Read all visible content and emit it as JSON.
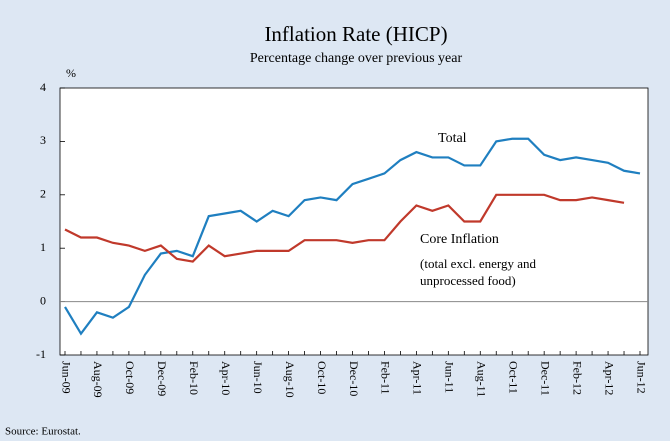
{
  "chart_data": {
    "type": "line",
    "title": "Inflation Rate (HICP)",
    "subtitle": "Percentage change over previous year",
    "ylabel": "%",
    "source": "Source: Eurostat.",
    "annotations": [
      "Total",
      "Core Inflation",
      "(total excl. energy and",
      "unprocessed food)"
    ],
    "categories": [
      "Jun-09",
      null,
      "Aug-09",
      null,
      "Oct-09",
      null,
      "Dec-09",
      null,
      "Feb-10",
      null,
      "Apr-10",
      null,
      "Jun-10",
      null,
      "Aug-10",
      null,
      "Oct-10",
      null,
      "Dec-10",
      null,
      "Feb-11",
      null,
      "Apr-11",
      null,
      "Jun-11",
      null,
      "Aug-11",
      null,
      "Oct-11",
      null,
      "Dec-11",
      null,
      "Feb-12",
      null,
      "Apr-12",
      null,
      "Jun-12"
    ],
    "series": [
      {
        "name": "Total",
        "color": "#1f7fc0",
        "values": [
          -0.1,
          -0.6,
          -0.2,
          -0.3,
          -0.1,
          0.5,
          0.9,
          0.95,
          0.85,
          1.6,
          1.65,
          1.7,
          1.5,
          1.7,
          1.6,
          1.9,
          1.95,
          1.9,
          2.2,
          2.3,
          2.4,
          2.65,
          2.8,
          2.7,
          2.7,
          2.55,
          2.55,
          3.0,
          3.05,
          3.05,
          2.75,
          2.65,
          2.7,
          2.65,
          2.6,
          2.45,
          2.4
        ]
      },
      {
        "name": "Core Inflation",
        "color": "#c0392b",
        "values": [
          1.35,
          1.2,
          1.2,
          1.1,
          1.05,
          0.95,
          1.05,
          0.8,
          0.75,
          1.05,
          0.85,
          0.9,
          0.95,
          0.95,
          0.95,
          1.15,
          1.15,
          1.15,
          1.1,
          1.15,
          1.15,
          1.5,
          1.8,
          1.7,
          1.8,
          1.5,
          1.5,
          2.0,
          2.0,
          2.0,
          2.0,
          1.9,
          1.9,
          1.95,
          1.9,
          1.85,
          null
        ]
      }
    ],
    "ylim": [
      -1,
      4
    ],
    "yticks": [
      -1,
      0,
      1,
      2,
      3,
      4
    ]
  }
}
